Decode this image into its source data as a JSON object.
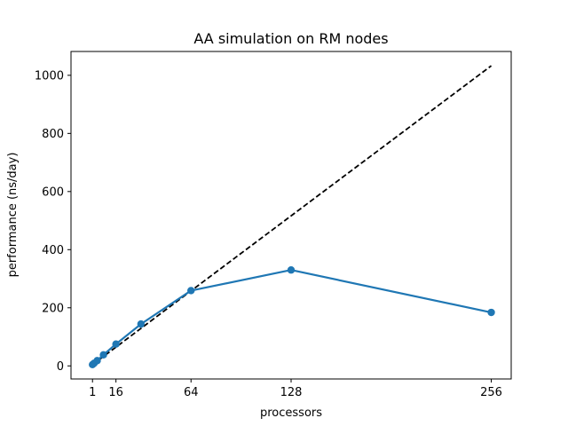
{
  "chart_data": {
    "type": "line",
    "title": "AA simulation on RM nodes",
    "xlabel": "processors",
    "ylabel": "performance (ns/day)",
    "xlim": [
      -12.75,
      268.75
    ],
    "ylim": [
      -45,
      1082
    ],
    "xticks": [
      1,
      16,
      64,
      128,
      256
    ],
    "yticks": [
      0,
      200,
      400,
      600,
      800,
      1000
    ],
    "grid": false,
    "colors": {
      "measured": "#1f77b4",
      "ideal": "#000000"
    },
    "series": [
      {
        "kind": "measured",
        "x": [
          1,
          2,
          4,
          8,
          16,
          32,
          64,
          128,
          256
        ],
        "y": [
          4.5,
          9,
          18,
          38,
          75,
          144,
          259,
          330,
          184
        ]
      },
      {
        "kind": "ideal",
        "style": "dashed",
        "x": [
          1,
          256
        ],
        "y": [
          4.05,
          1032.75
        ]
      }
    ]
  }
}
